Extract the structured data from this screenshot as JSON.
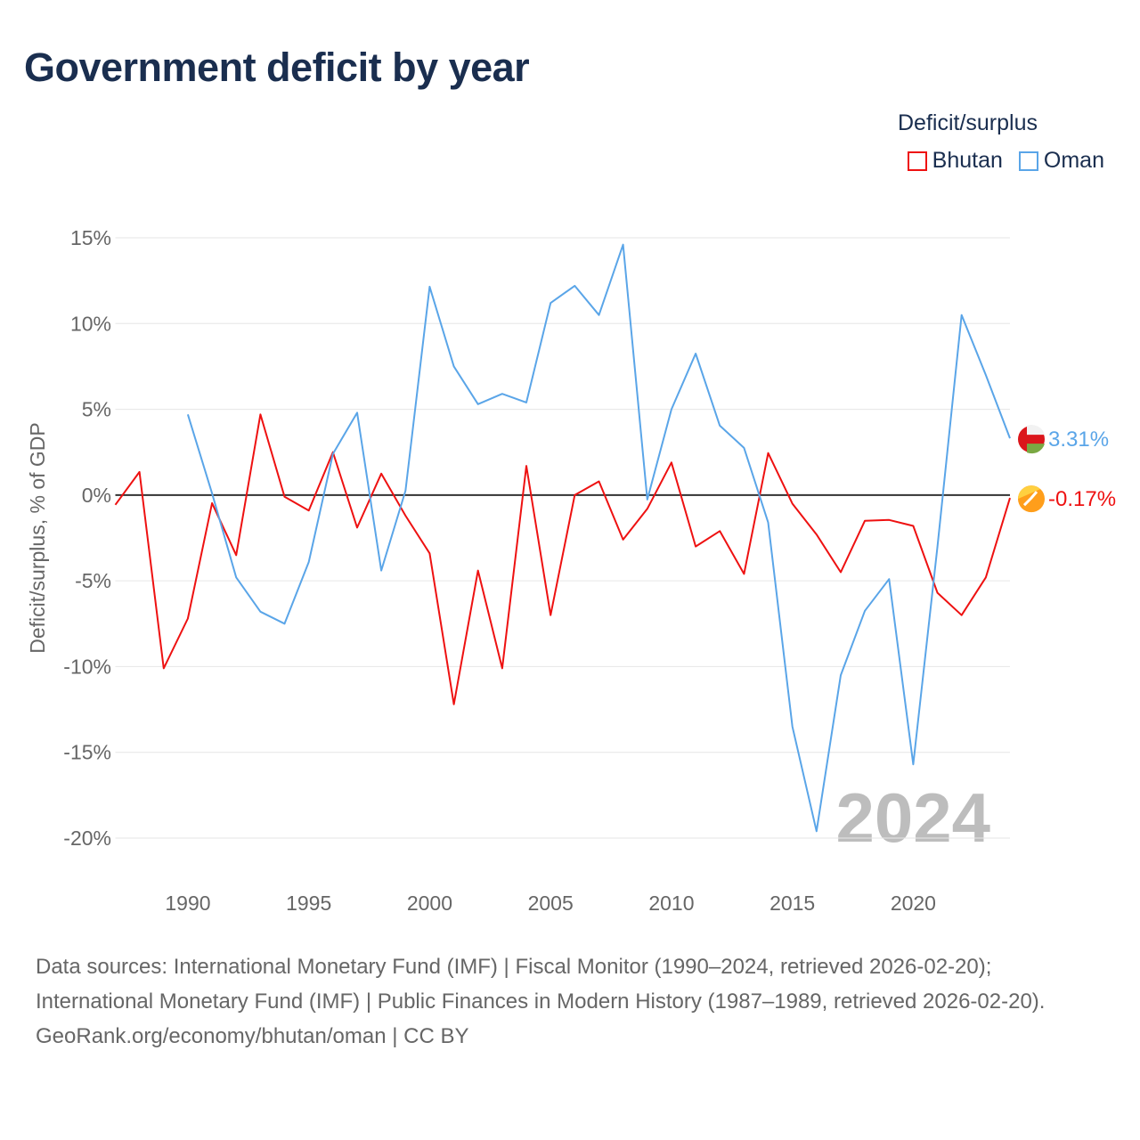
{
  "title": "Government deficit by year",
  "legend": {
    "title": "Deficit/surplus",
    "items": [
      {
        "name": "Bhutan",
        "color": "#ee1111"
      },
      {
        "name": "Oman",
        "color": "#5aa5e8"
      }
    ]
  },
  "chart_data": {
    "type": "line",
    "title": "Government deficit by year",
    "ylabel": "Deficit/surplus, % of GDP",
    "xlabel": "",
    "xlim": [
      1987,
      2024
    ],
    "ylim": [
      -20,
      15
    ],
    "yticks": [
      15,
      10,
      5,
      0,
      -5,
      -10,
      -15,
      -20
    ],
    "ytick_labels": [
      "15%",
      "10%",
      "5%",
      "0%",
      "-5%",
      "-10%",
      "-15%",
      "-20%"
    ],
    "xticks": [
      1990,
      1995,
      2000,
      2005,
      2010,
      2015,
      2020
    ],
    "xtick_labels": [
      "1990",
      "1995",
      "2000",
      "2005",
      "2010",
      "2015",
      "2020"
    ],
    "grid": true,
    "legend_position": "top-right",
    "year_watermark": "2024",
    "series": [
      {
        "name": "Bhutan",
        "color": "#ee1111",
        "end_label": "-0.17%",
        "start_year": 1987,
        "values": [
          -0.57,
          1.35,
          -10.1,
          -7.2,
          -0.47,
          -3.5,
          4.7,
          -0.1,
          -0.9,
          2.5,
          -1.9,
          1.25,
          -1.2,
          -3.4,
          -12.2,
          -4.4,
          -10.1,
          1.7,
          -7.0,
          0.0,
          0.8,
          -2.6,
          -0.8,
          1.9,
          -3.0,
          -2.1,
          -4.6,
          2.45,
          -0.5,
          -2.3,
          -4.5,
          -1.5,
          -1.45,
          -1.8,
          -5.7,
          -7.0,
          -4.8,
          -0.17
        ]
      },
      {
        "name": "Oman",
        "color": "#5aa5e8",
        "end_label": "3.31%",
        "start_year": 1990,
        "values": [
          4.7,
          0.1,
          -4.8,
          -6.8,
          -7.5,
          -3.9,
          2.4,
          4.8,
          -4.4,
          0.25,
          12.15,
          7.5,
          5.3,
          5.9,
          5.4,
          11.2,
          12.2,
          10.5,
          14.6,
          -0.26,
          5.0,
          8.25,
          4.05,
          2.75,
          -1.6,
          -13.5,
          -19.6,
          -10.5,
          -6.75,
          -4.9,
          -15.7,
          -3.0,
          10.5,
          7.0,
          3.31
        ]
      }
    ]
  },
  "footer": {
    "sources": "Data sources: International Monetary Fund (IMF) | Fiscal Monitor (1990–2024, retrieved 2026-02-20); International Monetary Fund (IMF) | Public Finances in Modern History (1987–1989, retrieved 2026-02-20).",
    "credit": "GeoRank.org/economy/bhutan/oman | CC BY"
  }
}
